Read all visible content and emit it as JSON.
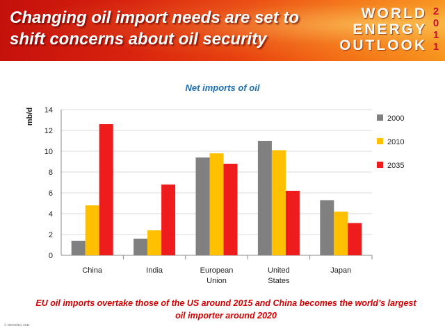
{
  "header": {
    "title_line1": "Changing oil import needs are set to",
    "title_line2": "shift concerns about oil security",
    "logo": [
      "WORLD",
      "ENERGY",
      "OUTLOOK"
    ],
    "logo_year": [
      "2",
      "0",
      "1",
      "1"
    ]
  },
  "footer": {
    "line1": "EU oil imports overtake those of the US around 2015 and China becomes the world’s largest",
    "line2": "oil importer around 2020"
  },
  "copyright": "© OECD/IEA 2011",
  "colors": {
    "2000": "#808080",
    "2010": "#ffc000",
    "2035": "#ee1c1c",
    "title_blue": "#1f6fb2",
    "footer_red": "#d40000"
  },
  "chart_data": {
    "type": "bar",
    "title": "Net imports of oil",
    "ylabel": "mb/d",
    "ylim": [
      0,
      14
    ],
    "yticks": [
      0,
      2,
      4,
      6,
      8,
      10,
      12,
      14
    ],
    "grid": true,
    "legend_position": "right",
    "categories": [
      [
        "China"
      ],
      [
        "India"
      ],
      [
        "European",
        "Union"
      ],
      [
        "United",
        "States"
      ],
      [
        "Japan"
      ]
    ],
    "series": [
      {
        "name": "2000",
        "color": "#808080",
        "values": [
          1.4,
          1.6,
          9.4,
          11.0,
          5.3
        ]
      },
      {
        "name": "2010",
        "color": "#ffc000",
        "values": [
          4.8,
          2.4,
          9.8,
          10.1,
          4.2
        ]
      },
      {
        "name": "2035",
        "color": "#ee1c1c",
        "values": [
          12.6,
          6.8,
          8.8,
          6.2,
          3.1
        ]
      }
    ]
  }
}
